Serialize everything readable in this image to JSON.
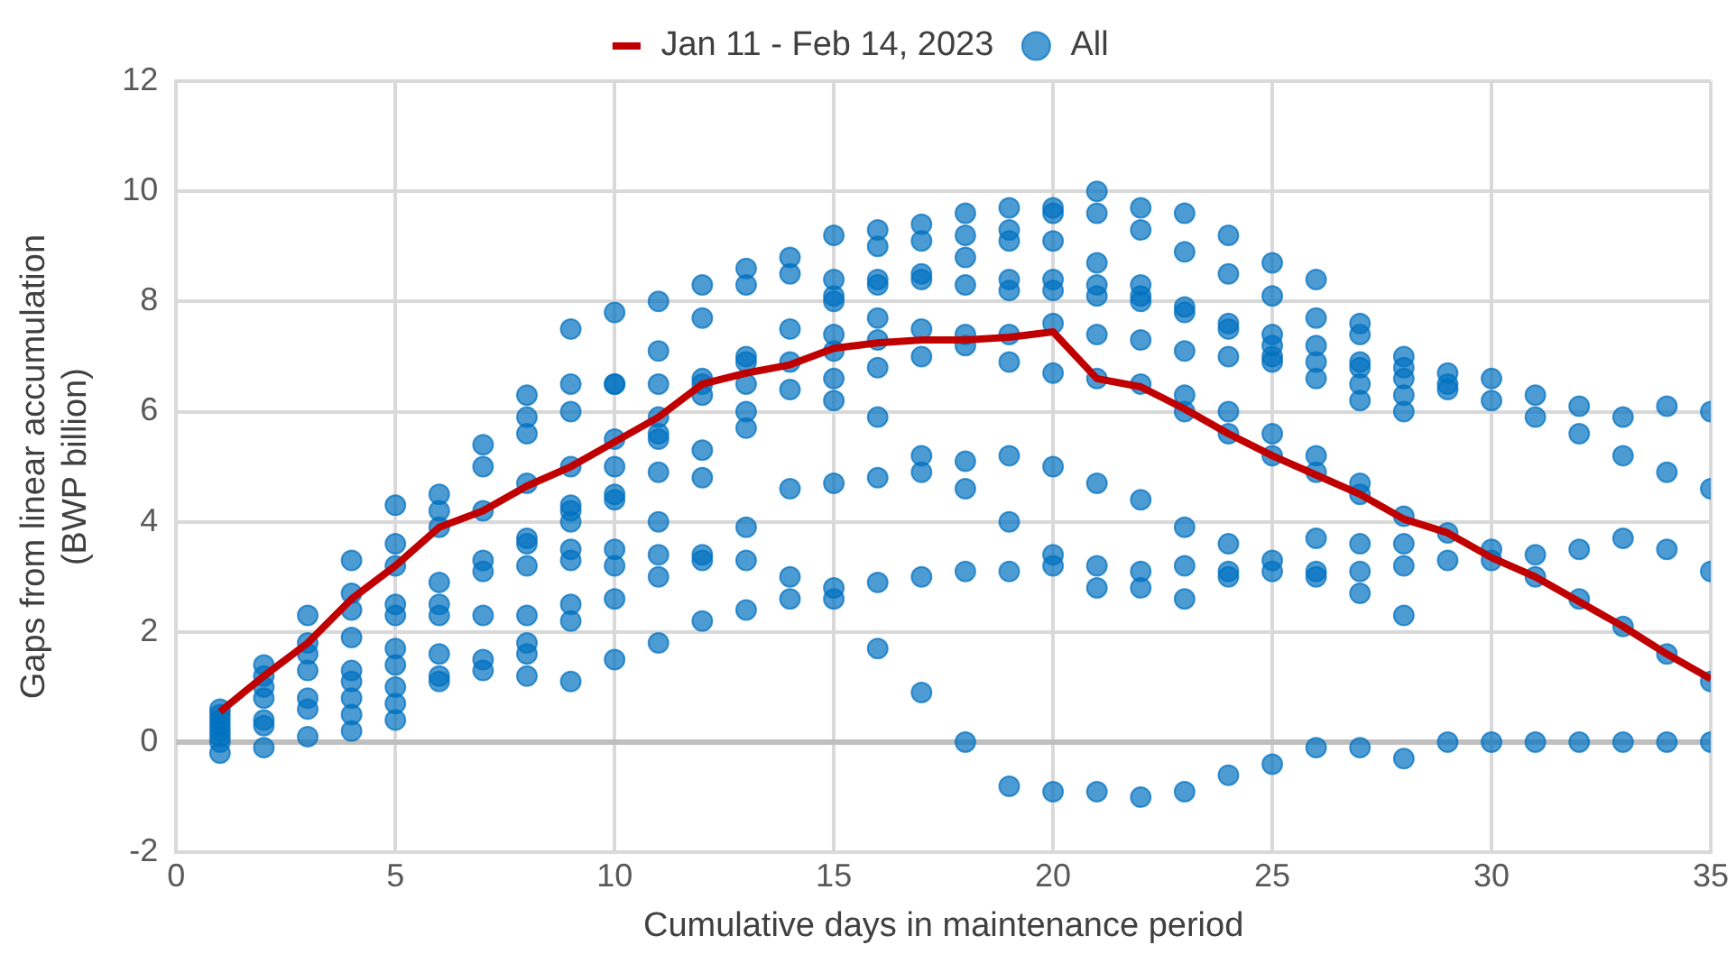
{
  "chart_data": {
    "type": "scatter",
    "xlabel": "Cumulative days in maintenance period",
    "ylabel": "Gaps from linear accumulation\n(BWP billion)",
    "xlim": [
      0,
      35
    ],
    "xticks": [
      0,
      5,
      10,
      15,
      20,
      25,
      30,
      35
    ],
    "ylim": [
      -2,
      12
    ],
    "yticks": [
      -2,
      0,
      2,
      4,
      6,
      8,
      10,
      12
    ],
    "grid": true,
    "legend": "top",
    "ref_lines": [
      {
        "axis": "y",
        "value": 0,
        "color": "#bfbfbf"
      }
    ],
    "series": [
      {
        "name": "Jan 11 - Feb 14, 2023",
        "type": "line",
        "color": "#c00000",
        "x": [
          1,
          2,
          3,
          4,
          5,
          6,
          7,
          8,
          9,
          10,
          11,
          12,
          13,
          14,
          15,
          16,
          17,
          18,
          19,
          20,
          21,
          22,
          23,
          24,
          25,
          26,
          27,
          28,
          29,
          30,
          31,
          32,
          33,
          34,
          35
        ],
        "values": [
          0.55,
          1.2,
          1.8,
          2.6,
          3.2,
          3.9,
          4.2,
          4.65,
          5.0,
          5.45,
          5.9,
          6.5,
          6.7,
          6.85,
          7.15,
          7.25,
          7.3,
          7.3,
          7.35,
          7.45,
          6.6,
          6.45,
          6.05,
          5.6,
          5.2,
          4.85,
          4.5,
          4.05,
          3.8,
          3.35,
          3.0,
          2.55,
          2.1,
          1.6,
          1.15
        ]
      },
      {
        "name": "All",
        "color": "#0070c0",
        "marker": "circle",
        "x": [
          1,
          1,
          1,
          1,
          1,
          1,
          1,
          1,
          2,
          2,
          2,
          2,
          2,
          2,
          2,
          3,
          3,
          3,
          3,
          3,
          3,
          3,
          4,
          4,
          4,
          4,
          4,
          4,
          4,
          4,
          4,
          5,
          5,
          5,
          5,
          5,
          5,
          5,
          5,
          5,
          5,
          6,
          6,
          6,
          6,
          6,
          6,
          6,
          6,
          6,
          7,
          7,
          7,
          7,
          7,
          7,
          7,
          7,
          8,
          8,
          8,
          8,
          8,
          8,
          8,
          8,
          8,
          8,
          8,
          9,
          9,
          9,
          9,
          9,
          9,
          9,
          9,
          9,
          9,
          9,
          9,
          10,
          10,
          10,
          10,
          10,
          10,
          10,
          10,
          10,
          10,
          10,
          11,
          11,
          11,
          11,
          11,
          11,
          11,
          11,
          11,
          11,
          11,
          12,
          12,
          12,
          12,
          12,
          12,
          12,
          12,
          12,
          12,
          13,
          13,
          13,
          13,
          13,
          13,
          13,
          13,
          13,
          13,
          14,
          14,
          14,
          14,
          14,
          14,
          14,
          14,
          15,
          15,
          15,
          15,
          15,
          15,
          15,
          15,
          15,
          15,
          15,
          16,
          16,
          16,
          16,
          16,
          16,
          16,
          16,
          16,
          16,
          16,
          17,
          17,
          17,
          17,
          17,
          17,
          17,
          17,
          17,
          17,
          18,
          18,
          18,
          18,
          18,
          18,
          18,
          18,
          18,
          18,
          19,
          19,
          19,
          19,
          19,
          19,
          19,
          19,
          19,
          19,
          19,
          20,
          20,
          20,
          20,
          20,
          20,
          20,
          20,
          20,
          20,
          20,
          21,
          21,
          21,
          21,
          21,
          21,
          21,
          21,
          21,
          21,
          21,
          22,
          22,
          22,
          22,
          22,
          22,
          22,
          22,
          22,
          22,
          22,
          23,
          23,
          23,
          23,
          23,
          23,
          23,
          23,
          23,
          23,
          23,
          24,
          24,
          24,
          24,
          24,
          24,
          24,
          24,
          24,
          24,
          24,
          25,
          25,
          25,
          25,
          25,
          25,
          25,
          25,
          25,
          25,
          25,
          26,
          26,
          26,
          26,
          26,
          26,
          26,
          26,
          26,
          26,
          26,
          27,
          27,
          27,
          27,
          27,
          27,
          27,
          27,
          27,
          27,
          27,
          27,
          28,
          28,
          28,
          28,
          28,
          28,
          28,
          28,
          28,
          28,
          29,
          29,
          29,
          29,
          29,
          29,
          30,
          30,
          30,
          30,
          30,
          31,
          31,
          31,
          31,
          31,
          32,
          32,
          32,
          32,
          32,
          33,
          33,
          33,
          33,
          33,
          34,
          34,
          34,
          34,
          34,
          35,
          35,
          35,
          35,
          35
        ],
        "values": [
          0.6,
          0.5,
          0.4,
          0.3,
          0.2,
          0.1,
          0,
          -0.2,
          1.4,
          1.2,
          1,
          0.8,
          0.4,
          0.3,
          -0.1,
          2.3,
          1.8,
          1.6,
          1.3,
          0.8,
          0.6,
          0.1,
          3.3,
          2.7,
          2.4,
          1.9,
          1.3,
          1.1,
          0.8,
          0.5,
          0.2,
          4.3,
          3.6,
          3.2,
          2.5,
          2.3,
          1.7,
          1.4,
          1,
          0.7,
          0.4,
          4.5,
          4.2,
          3.9,
          2.9,
          2.5,
          2.3,
          1.6,
          1.2,
          1.1,
          5.4,
          5,
          4.2,
          3.3,
          3.1,
          2.3,
          1.5,
          1.3,
          6.3,
          5.9,
          5.6,
          4.7,
          3.7,
          3.6,
          3.2,
          2.3,
          1.8,
          1.6,
          1.2,
          7.5,
          6.5,
          6,
          5,
          4.3,
          4.2,
          4,
          3.5,
          3.3,
          2.5,
          2.2,
          1.1,
          7.8,
          6.5,
          6.5,
          5.5,
          5,
          4.5,
          4.4,
          3.5,
          3.2,
          2.6,
          1.5,
          8,
          7.1,
          6.5,
          5.9,
          5.6,
          5.5,
          4.9,
          4,
          3.4,
          3,
          1.8,
          8.3,
          7.7,
          6.6,
          6.5,
          6.3,
          5.3,
          4.8,
          3.4,
          3.3,
          2.2,
          8.6,
          8.3,
          7,
          6.9,
          6.5,
          6,
          5.7,
          3.9,
          3.3,
          2.4,
          8.8,
          8.5,
          7.5,
          6.9,
          6.4,
          4.6,
          3,
          2.6,
          9.2,
          8.4,
          8.1,
          8,
          7.4,
          7.1,
          6.6,
          6.2,
          4.7,
          2.8,
          2.6,
          9.3,
          9,
          8.4,
          8.3,
          7.7,
          7.3,
          6.8,
          5.9,
          4.8,
          2.9,
          1.7,
          9.4,
          9.1,
          8.5,
          8.4,
          7.5,
          7,
          5.2,
          4.9,
          3,
          0.9,
          9.6,
          9.2,
          8.8,
          8.3,
          7.4,
          7.2,
          5.1,
          4.6,
          3.1,
          0,
          9.7,
          9.3,
          9.1,
          8.4,
          8.2,
          7.4,
          6.9,
          5.2,
          4,
          3.1,
          -0.8,
          9.7,
          9.6,
          9.1,
          8.4,
          8.2,
          7.6,
          6.7,
          5,
          3.4,
          3.2,
          -0.9,
          10,
          9.6,
          8.7,
          8.3,
          8.1,
          7.4,
          6.6,
          4.7,
          3.2,
          2.8,
          -0.9,
          9.7,
          9.3,
          8.3,
          8.1,
          8,
          7.3,
          6.5,
          4.4,
          3.1,
          2.8,
          -1,
          9.6,
          8.9,
          7.9,
          7.8,
          7.1,
          6.3,
          6,
          3.9,
          3.2,
          2.6,
          -0.9,
          9.2,
          8.5,
          7.6,
          7.5,
          7,
          6,
          5.6,
          3.6,
          3.1,
          3,
          -0.6,
          8.7,
          8.1,
          7.4,
          7.2,
          7,
          6.9,
          5.6,
          5.2,
          3.3,
          3.1,
          -0.4,
          8.4,
          7.7,
          7.2,
          6.9,
          6.6,
          5.2,
          4.9,
          3.7,
          3.1,
          3,
          -0.1,
          7.6,
          7.4,
          6.9,
          6.8,
          6.5,
          6.2,
          4.7,
          4.5,
          3.6,
          3.1,
          2.7,
          -0.1,
          7,
          6.8,
          6.6,
          6.3,
          6,
          4.1,
          3.6,
          3.2,
          2.3,
          -0.3,
          6.7,
          6.5,
          6.4,
          3.8,
          3.3,
          0,
          6.6,
          6.2,
          3.5,
          3.3,
          0,
          6.3,
          5.9,
          3.4,
          3,
          0,
          6.1,
          5.6,
          3.5,
          2.6,
          0,
          5.9,
          5.2,
          3.7,
          2.1,
          0,
          6.1,
          4.9,
          3.5,
          1.6,
          0,
          6,
          4.6,
          3.1,
          1.1,
          0
        ]
      }
    ]
  }
}
